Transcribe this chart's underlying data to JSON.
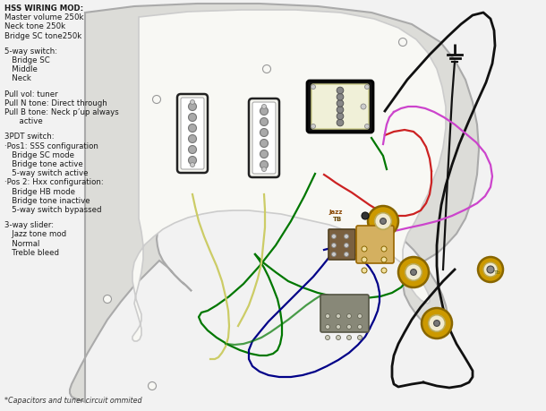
{
  "background_color": "#f2f2f2",
  "body_color": "#e0e0de",
  "body_edge_color": "#b0b0b0",
  "pickguard_color": "#f5f5f2",
  "pickguard_edge": "#c0c0bc",
  "text_lines_top": [
    "HSS WIRING MOD:",
    "Master volume 250k",
    "Neck tone 250k",
    "Bridge SC tone250k"
  ],
  "text_lines_switch": [
    "5-way switch:",
    "   Bridge SC",
    "   Middle",
    "   Neck"
  ],
  "text_lines_pull": [
    "Pull vol: tuner",
    "Pull N tone: Direct through",
    "Pull B tone: Neck p’up always",
    "      active"
  ],
  "text_lines_3pdt": [
    "3PDT switch:",
    "·Pos1: SSS configuration",
    "   Bridge SC mode",
    "   Bridge tone active",
    "   5-way switch active",
    "·Pos 2: Hxx configuration:",
    "   Bridge HB mode",
    "   Bridge tone inactive",
    "   5-way switch bypassed"
  ],
  "text_lines_slider": [
    "3-way slider:",
    "   Jazz tone mod",
    "   Normal",
    "   Treble bleed"
  ],
  "text_bottom": "*Capacitors and tuner circuit ommited",
  "pot_color": "#cc9900",
  "label_jazz": "Jazz",
  "label_tb": "TB",
  "sc_body": "#f8f8f0",
  "sc_edge": "#888888",
  "hb_outer": "#111111",
  "hb_inner": "#f5f5e0",
  "pole_color": "#999999"
}
